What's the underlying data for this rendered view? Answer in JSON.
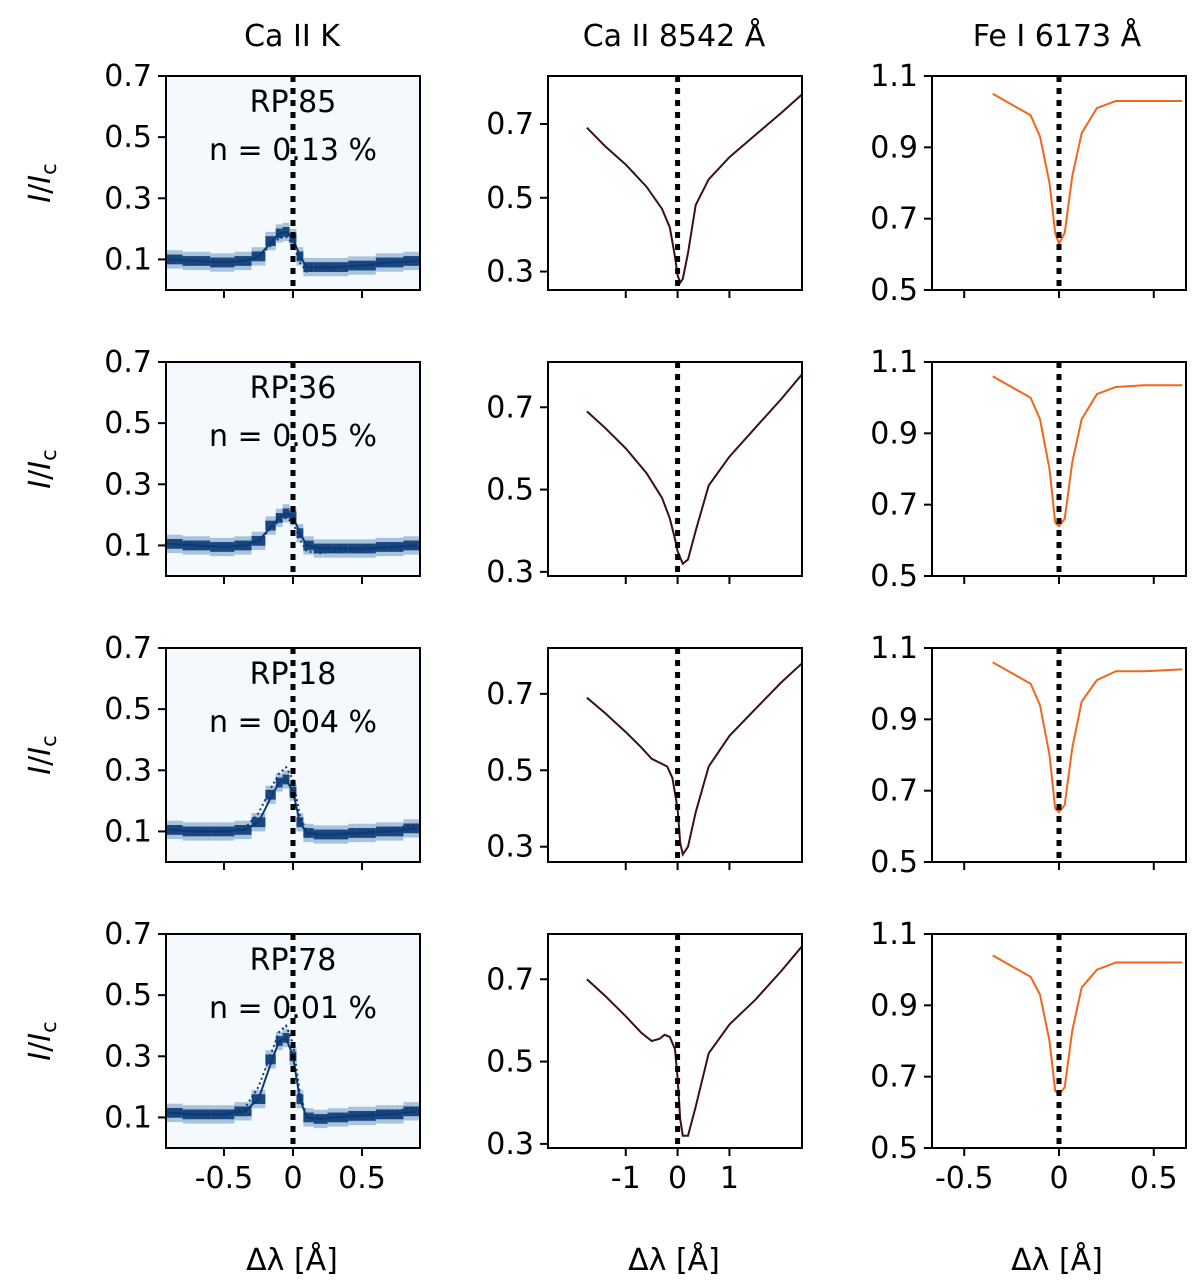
{
  "figure": {
    "column_titles": [
      "Ca II K",
      "Ca II 8542 Å",
      "Fe I 6173 Å"
    ],
    "ylabel": "I/I_c",
    "xlabel": "Δλ [Å]"
  },
  "colors": {
    "heatmap_bg": "#f4f9fe",
    "heatmap_band": "#1c5e9e",
    "heatmap_core": "#0b3a75",
    "ca8542_line": "#3a0f1c",
    "fe6173_line": "#f2661c",
    "marker": "#000000"
  },
  "chart_data": [
    {
      "type": "heatmap",
      "panel": "Ca II K",
      "row": 1,
      "annotation": [
        "RP 85",
        "n = 0.13 %"
      ],
      "xlim": [
        -0.92,
        0.92
      ],
      "ylim": [
        0.0,
        0.7
      ],
      "yticks": [
        0.1,
        0.3,
        0.5,
        0.7
      ],
      "xticks": [
        -0.5,
        0,
        0.5
      ],
      "xtick_labels_visible": false,
      "vline_x": 0,
      "x": [
        -0.9,
        -0.7,
        -0.5,
        -0.35,
        -0.25,
        -0.15,
        -0.1,
        -0.05,
        0.0,
        0.05,
        0.1,
        0.2,
        0.3,
        0.5,
        0.7,
        0.9
      ],
      "mean": [
        0.1,
        0.095,
        0.09,
        0.095,
        0.11,
        0.16,
        0.185,
        0.19,
        0.17,
        0.11,
        0.075,
        0.075,
        0.075,
        0.08,
        0.09,
        0.095
      ],
      "ref": [
        0.1,
        0.095,
        0.09,
        0.095,
        0.11,
        0.15,
        0.17,
        0.175,
        0.15,
        0.09,
        0.06,
        0.07,
        0.075,
        0.08,
        0.09,
        0.095
      ]
    },
    {
      "type": "line",
      "panel": "Ca II 8542 Å",
      "row": 1,
      "xlim": [
        -2.5,
        2.4
      ],
      "ylim": [
        0.25,
        0.83
      ],
      "yticks": [
        0.3,
        0.5,
        0.7
      ],
      "xticks": [
        -1,
        0,
        1
      ],
      "xtick_labels_visible": false,
      "vline_x": 0,
      "x": [
        -1.75,
        -1.4,
        -1.0,
        -0.6,
        -0.3,
        -0.15,
        -0.05,
        0.0,
        0.05,
        0.1,
        0.2,
        0.35,
        0.6,
        1.0,
        1.5,
        2.0,
        2.4
      ],
      "y": [
        0.69,
        0.64,
        0.59,
        0.53,
        0.47,
        0.42,
        0.34,
        0.29,
        0.27,
        0.28,
        0.35,
        0.48,
        0.55,
        0.61,
        0.67,
        0.73,
        0.78
      ]
    },
    {
      "type": "line",
      "panel": "Fe I 6173 Å",
      "row": 1,
      "xlim": [
        -0.67,
        0.67
      ],
      "ylim": [
        0.5,
        1.1
      ],
      "yticks": [
        0.5,
        0.7,
        0.9,
        1.1
      ],
      "xticks": [
        -0.5,
        0,
        0.5
      ],
      "xtick_labels_visible": false,
      "vline_x": 0,
      "x": [
        -0.35,
        -0.25,
        -0.15,
        -0.1,
        -0.05,
        -0.02,
        0.0,
        0.03,
        0.07,
        0.12,
        0.2,
        0.3,
        0.45,
        0.65
      ],
      "y": [
        1.05,
        1.02,
        0.99,
        0.93,
        0.8,
        0.66,
        0.63,
        0.66,
        0.82,
        0.94,
        1.01,
        1.03,
        1.03,
        1.03
      ]
    },
    {
      "type": "heatmap",
      "panel": "Ca II K",
      "row": 2,
      "annotation": [
        "RP 36",
        "n = 0.05 %"
      ],
      "xlim": [
        -0.92,
        0.92
      ],
      "ylim": [
        0.0,
        0.7
      ],
      "yticks": [
        0.1,
        0.3,
        0.5,
        0.7
      ],
      "xticks": [
        -0.5,
        0,
        0.5
      ],
      "xtick_labels_visible": false,
      "vline_x": 0,
      "x": [
        -0.9,
        -0.7,
        -0.5,
        -0.35,
        -0.25,
        -0.15,
        -0.1,
        -0.05,
        0.0,
        0.05,
        0.1,
        0.2,
        0.3,
        0.5,
        0.7,
        0.9
      ],
      "mean": [
        0.105,
        0.1,
        0.095,
        0.1,
        0.115,
        0.165,
        0.19,
        0.205,
        0.195,
        0.14,
        0.1,
        0.09,
        0.09,
        0.09,
        0.095,
        0.1
      ],
      "ref": [
        0.105,
        0.1,
        0.095,
        0.1,
        0.115,
        0.16,
        0.18,
        0.19,
        0.175,
        0.12,
        0.08,
        0.075,
        0.08,
        0.085,
        0.09,
        0.1
      ]
    },
    {
      "type": "line",
      "panel": "Ca II 8542 Å",
      "row": 2,
      "xlim": [
        -2.5,
        2.4
      ],
      "ylim": [
        0.29,
        0.81
      ],
      "yticks": [
        0.3,
        0.5,
        0.7
      ],
      "xticks": [
        -1,
        0,
        1
      ],
      "xtick_labels_visible": false,
      "vline_x": 0,
      "x": [
        -1.75,
        -1.4,
        -1.0,
        -0.6,
        -0.3,
        -0.15,
        -0.05,
        0.0,
        0.1,
        0.2,
        0.35,
        0.6,
        1.0,
        1.5,
        2.0,
        2.4
      ],
      "y": [
        0.69,
        0.65,
        0.6,
        0.54,
        0.48,
        0.43,
        0.38,
        0.35,
        0.32,
        0.33,
        0.4,
        0.51,
        0.58,
        0.65,
        0.72,
        0.78
      ]
    },
    {
      "type": "line",
      "panel": "Fe I 6173 Å",
      "row": 2,
      "xlim": [
        -0.67,
        0.67
      ],
      "ylim": [
        0.5,
        1.1
      ],
      "yticks": [
        0.5,
        0.7,
        0.9,
        1.1
      ],
      "xticks": [
        -0.5,
        0,
        0.5
      ],
      "xtick_labels_visible": false,
      "vline_x": 0,
      "x": [
        -0.35,
        -0.25,
        -0.15,
        -0.1,
        -0.05,
        -0.02,
        0.0,
        0.03,
        0.07,
        0.12,
        0.2,
        0.3,
        0.45,
        0.65
      ],
      "y": [
        1.06,
        1.03,
        1.0,
        0.94,
        0.8,
        0.65,
        0.64,
        0.66,
        0.82,
        0.94,
        1.01,
        1.03,
        1.035,
        1.035
      ]
    },
    {
      "type": "heatmap",
      "panel": "Ca II K",
      "row": 3,
      "annotation": [
        "RP 18",
        "n = 0.04 %"
      ],
      "xlim": [
        -0.92,
        0.92
      ],
      "ylim": [
        0.0,
        0.7
      ],
      "yticks": [
        0.1,
        0.3,
        0.5,
        0.7
      ],
      "xticks": [
        -0.5,
        0,
        0.5
      ],
      "xtick_labels_visible": false,
      "vline_x": 0,
      "x": [
        -0.9,
        -0.7,
        -0.5,
        -0.35,
        -0.25,
        -0.15,
        -0.1,
        -0.05,
        0.0,
        0.05,
        0.1,
        0.2,
        0.3,
        0.5,
        0.7,
        0.9
      ],
      "mean": [
        0.105,
        0.1,
        0.1,
        0.105,
        0.13,
        0.22,
        0.26,
        0.27,
        0.23,
        0.13,
        0.095,
        0.09,
        0.09,
        0.095,
        0.1,
        0.11
      ],
      "ref": [
        0.105,
        0.1,
        0.1,
        0.11,
        0.16,
        0.25,
        0.29,
        0.31,
        0.27,
        0.15,
        0.1,
        0.09,
        0.09,
        0.1,
        0.11,
        0.12
      ]
    },
    {
      "type": "line",
      "panel": "Ca II 8542 Å",
      "row": 3,
      "xlim": [
        -2.5,
        2.4
      ],
      "ylim": [
        0.26,
        0.82
      ],
      "yticks": [
        0.3,
        0.5,
        0.7
      ],
      "xticks": [
        -1,
        0,
        1
      ],
      "xtick_labels_visible": false,
      "vline_x": 0,
      "x": [
        -1.75,
        -1.4,
        -1.0,
        -0.7,
        -0.5,
        -0.35,
        -0.2,
        -0.1,
        0.0,
        0.05,
        0.1,
        0.2,
        0.35,
        0.6,
        1.0,
        1.5,
        2.0,
        2.4
      ],
      "y": [
        0.69,
        0.65,
        0.6,
        0.56,
        0.53,
        0.52,
        0.51,
        0.48,
        0.4,
        0.31,
        0.28,
        0.3,
        0.39,
        0.51,
        0.59,
        0.66,
        0.73,
        0.78
      ]
    },
    {
      "type": "line",
      "panel": "Fe I 6173 Å",
      "row": 3,
      "xlim": [
        -0.67,
        0.67
      ],
      "ylim": [
        0.5,
        1.1
      ],
      "yticks": [
        0.5,
        0.7,
        0.9,
        1.1
      ],
      "xticks": [
        -0.5,
        0,
        0.5
      ],
      "xtick_labels_visible": false,
      "vline_x": 0,
      "x": [
        -0.35,
        -0.25,
        -0.15,
        -0.1,
        -0.05,
        -0.02,
        0.0,
        0.03,
        0.07,
        0.12,
        0.2,
        0.3,
        0.45,
        0.65
      ],
      "y": [
        1.06,
        1.03,
        1.0,
        0.94,
        0.8,
        0.65,
        0.64,
        0.66,
        0.82,
        0.95,
        1.01,
        1.035,
        1.035,
        1.04
      ]
    },
    {
      "type": "heatmap",
      "panel": "Ca II K",
      "row": 4,
      "annotation": [
        "RP 78",
        "n = 0.01 %"
      ],
      "xlim": [
        -0.92,
        0.92
      ],
      "ylim": [
        0.0,
        0.7
      ],
      "yticks": [
        0.1,
        0.3,
        0.5,
        0.7
      ],
      "xticks": [
        -0.5,
        0,
        0.5
      ],
      "xtick_labels_visible": false,
      "vline_x": 0,
      "x": [
        -0.9,
        -0.7,
        -0.5,
        -0.35,
        -0.25,
        -0.15,
        -0.1,
        -0.05,
        0.0,
        0.05,
        0.1,
        0.2,
        0.3,
        0.5,
        0.7,
        0.9
      ],
      "mean": [
        0.115,
        0.11,
        0.11,
        0.12,
        0.16,
        0.29,
        0.35,
        0.36,
        0.3,
        0.16,
        0.1,
        0.095,
        0.1,
        0.105,
        0.11,
        0.12
      ],
      "ref": [
        0.115,
        0.11,
        0.11,
        0.13,
        0.2,
        0.32,
        0.38,
        0.4,
        0.34,
        0.18,
        0.1,
        0.095,
        0.1,
        0.11,
        0.12,
        0.13
      ]
    },
    {
      "type": "line",
      "panel": "Ca II 8542 Å",
      "row": 4,
      "xlim": [
        -2.5,
        2.4
      ],
      "ylim": [
        0.29,
        0.81
      ],
      "yticks": [
        0.3,
        0.5,
        0.7
      ],
      "xticks": [
        -1,
        0,
        1
      ],
      "xtick_labels_visible": false,
      "vline_x": 0,
      "x": [
        -1.75,
        -1.4,
        -1.0,
        -0.7,
        -0.5,
        -0.35,
        -0.25,
        -0.15,
        -0.05,
        0.0,
        0.05,
        0.1,
        0.2,
        0.35,
        0.6,
        1.0,
        1.5,
        2.0,
        2.4
      ],
      "y": [
        0.7,
        0.66,
        0.61,
        0.57,
        0.55,
        0.555,
        0.565,
        0.56,
        0.53,
        0.46,
        0.36,
        0.32,
        0.32,
        0.39,
        0.52,
        0.59,
        0.65,
        0.72,
        0.78
      ]
    },
    {
      "type": "line",
      "panel": "Fe I 6173 Å",
      "row": 4,
      "xlim": [
        -0.67,
        0.67
      ],
      "ylim": [
        0.5,
        1.1
      ],
      "yticks": [
        0.5,
        0.7,
        0.9,
        1.1
      ],
      "xticks": [
        -0.5,
        0,
        0.5
      ],
      "xtick_labels_visible": true,
      "vline_x": 0,
      "x": [
        -0.35,
        -0.25,
        -0.15,
        -0.1,
        -0.05,
        -0.02,
        0.0,
        0.03,
        0.07,
        0.12,
        0.2,
        0.3,
        0.45,
        0.65
      ],
      "y": [
        1.04,
        1.01,
        0.98,
        0.93,
        0.8,
        0.66,
        0.65,
        0.67,
        0.83,
        0.95,
        1.0,
        1.02,
        1.02,
        1.02
      ]
    }
  ],
  "bottom_xtick_labels": {
    "Ca II K": [
      "-0.5",
      "0",
      "0.5"
    ],
    "Ca II 8542 Å": [
      "-1",
      "0",
      "1"
    ],
    "Fe I 6173 Å": [
      "-0.5",
      "0",
      "0.5"
    ]
  }
}
